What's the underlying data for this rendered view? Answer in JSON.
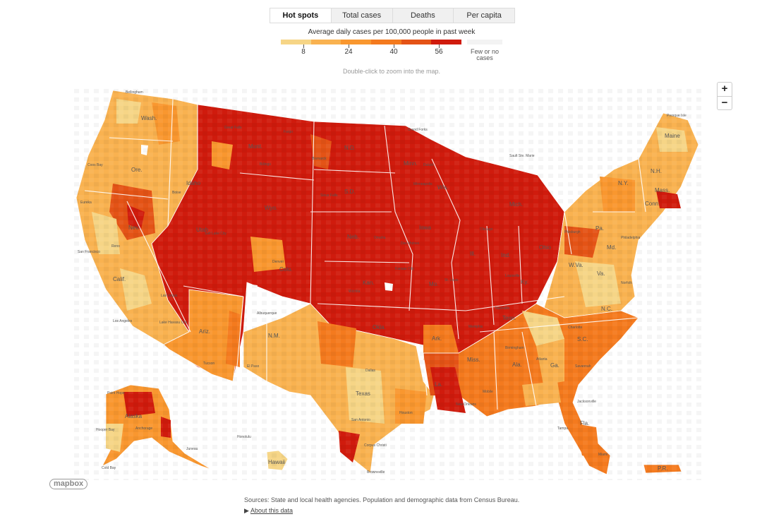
{
  "tabs": [
    "Hot spots",
    "Total cases",
    "Deaths",
    "Per capita"
  ],
  "legend": {
    "title": "Average daily cases per 100,000 people in past week",
    "colors": [
      "#f6d586",
      "#f9b250",
      "#f9972f",
      "#f47a1e",
      "#e45316",
      "#d01b0d"
    ],
    "ticks": [
      "8",
      "24",
      "40",
      "56"
    ],
    "no_case_label": "Few or no cases"
  },
  "hint": "Double-click to zoom into the map.",
  "zoom": {
    "in": "+",
    "out": "−"
  },
  "map_labels": {
    "states": [
      "Wash.",
      "Ore.",
      "Idaho",
      "Mont.",
      "N.D.",
      "Minn.",
      "S.D.",
      "Wyo.",
      "Wis.",
      "Mich.",
      "N.Y.",
      "Maine",
      "N.H.",
      "Mass.",
      "Conn.",
      "Nev.",
      "Utah",
      "Calif.",
      "Colo.",
      "Neb.",
      "Iowa",
      "Ill.",
      "Ind.",
      "Ohio",
      "Pa.",
      "Md.",
      "Kan.",
      "Mo.",
      "Ky.",
      "W.Va.",
      "Va.",
      "N.C.",
      "Tenn.",
      "Ariz.",
      "N.M.",
      "Okla.",
      "Ark.",
      "S.C.",
      "Ga.",
      "Ala.",
      "Miss.",
      "La.",
      "Texas",
      "Fla.",
      "Alaska",
      "Hawaii",
      "P.R."
    ],
    "cities": [
      "Bellingham",
      "Great Falls",
      "Billings",
      "Bismarck",
      "Grand Forks",
      "Duluth",
      "Sault Ste. Marie",
      "Presque Isle",
      "Coos Bay",
      "Eureka",
      "Salt Lake City",
      "Reno",
      "San Francisco",
      "Las Vegas",
      "Los Angeles",
      "Lake Havasu City",
      "Tucson",
      "Denver",
      "Omaha",
      "Chicago",
      "Kansas City",
      "St. Louis",
      "Louisville",
      "Pittsburgh",
      "Philadelphia",
      "Norfolk",
      "Charlotte",
      "Atlanta",
      "Savannah",
      "Jacksonville",
      "Tampa",
      "Miami",
      "Memphis",
      "Dallas",
      "El Paso",
      "San Antonio",
      "Houston",
      "New Orleans",
      "Corpus Christi",
      "Brownsville",
      "Honolulu",
      "Anchorage",
      "Juneau",
      "Point Hope",
      "Hooper Bay",
      "Cold Bay",
      "Sioux Falls",
      "Fargo",
      "Minneapolis",
      "Des Moines",
      "Wichita",
      "Nashville",
      "Birmingham",
      "Mobile",
      "Albuquerque",
      "Boise"
    ]
  },
  "attribution": "mapbox",
  "sources": "Sources: State and local health agencies. Population and demographic data from Census Bureau.",
  "about": {
    "arrow": "▶",
    "label": "About this data"
  }
}
